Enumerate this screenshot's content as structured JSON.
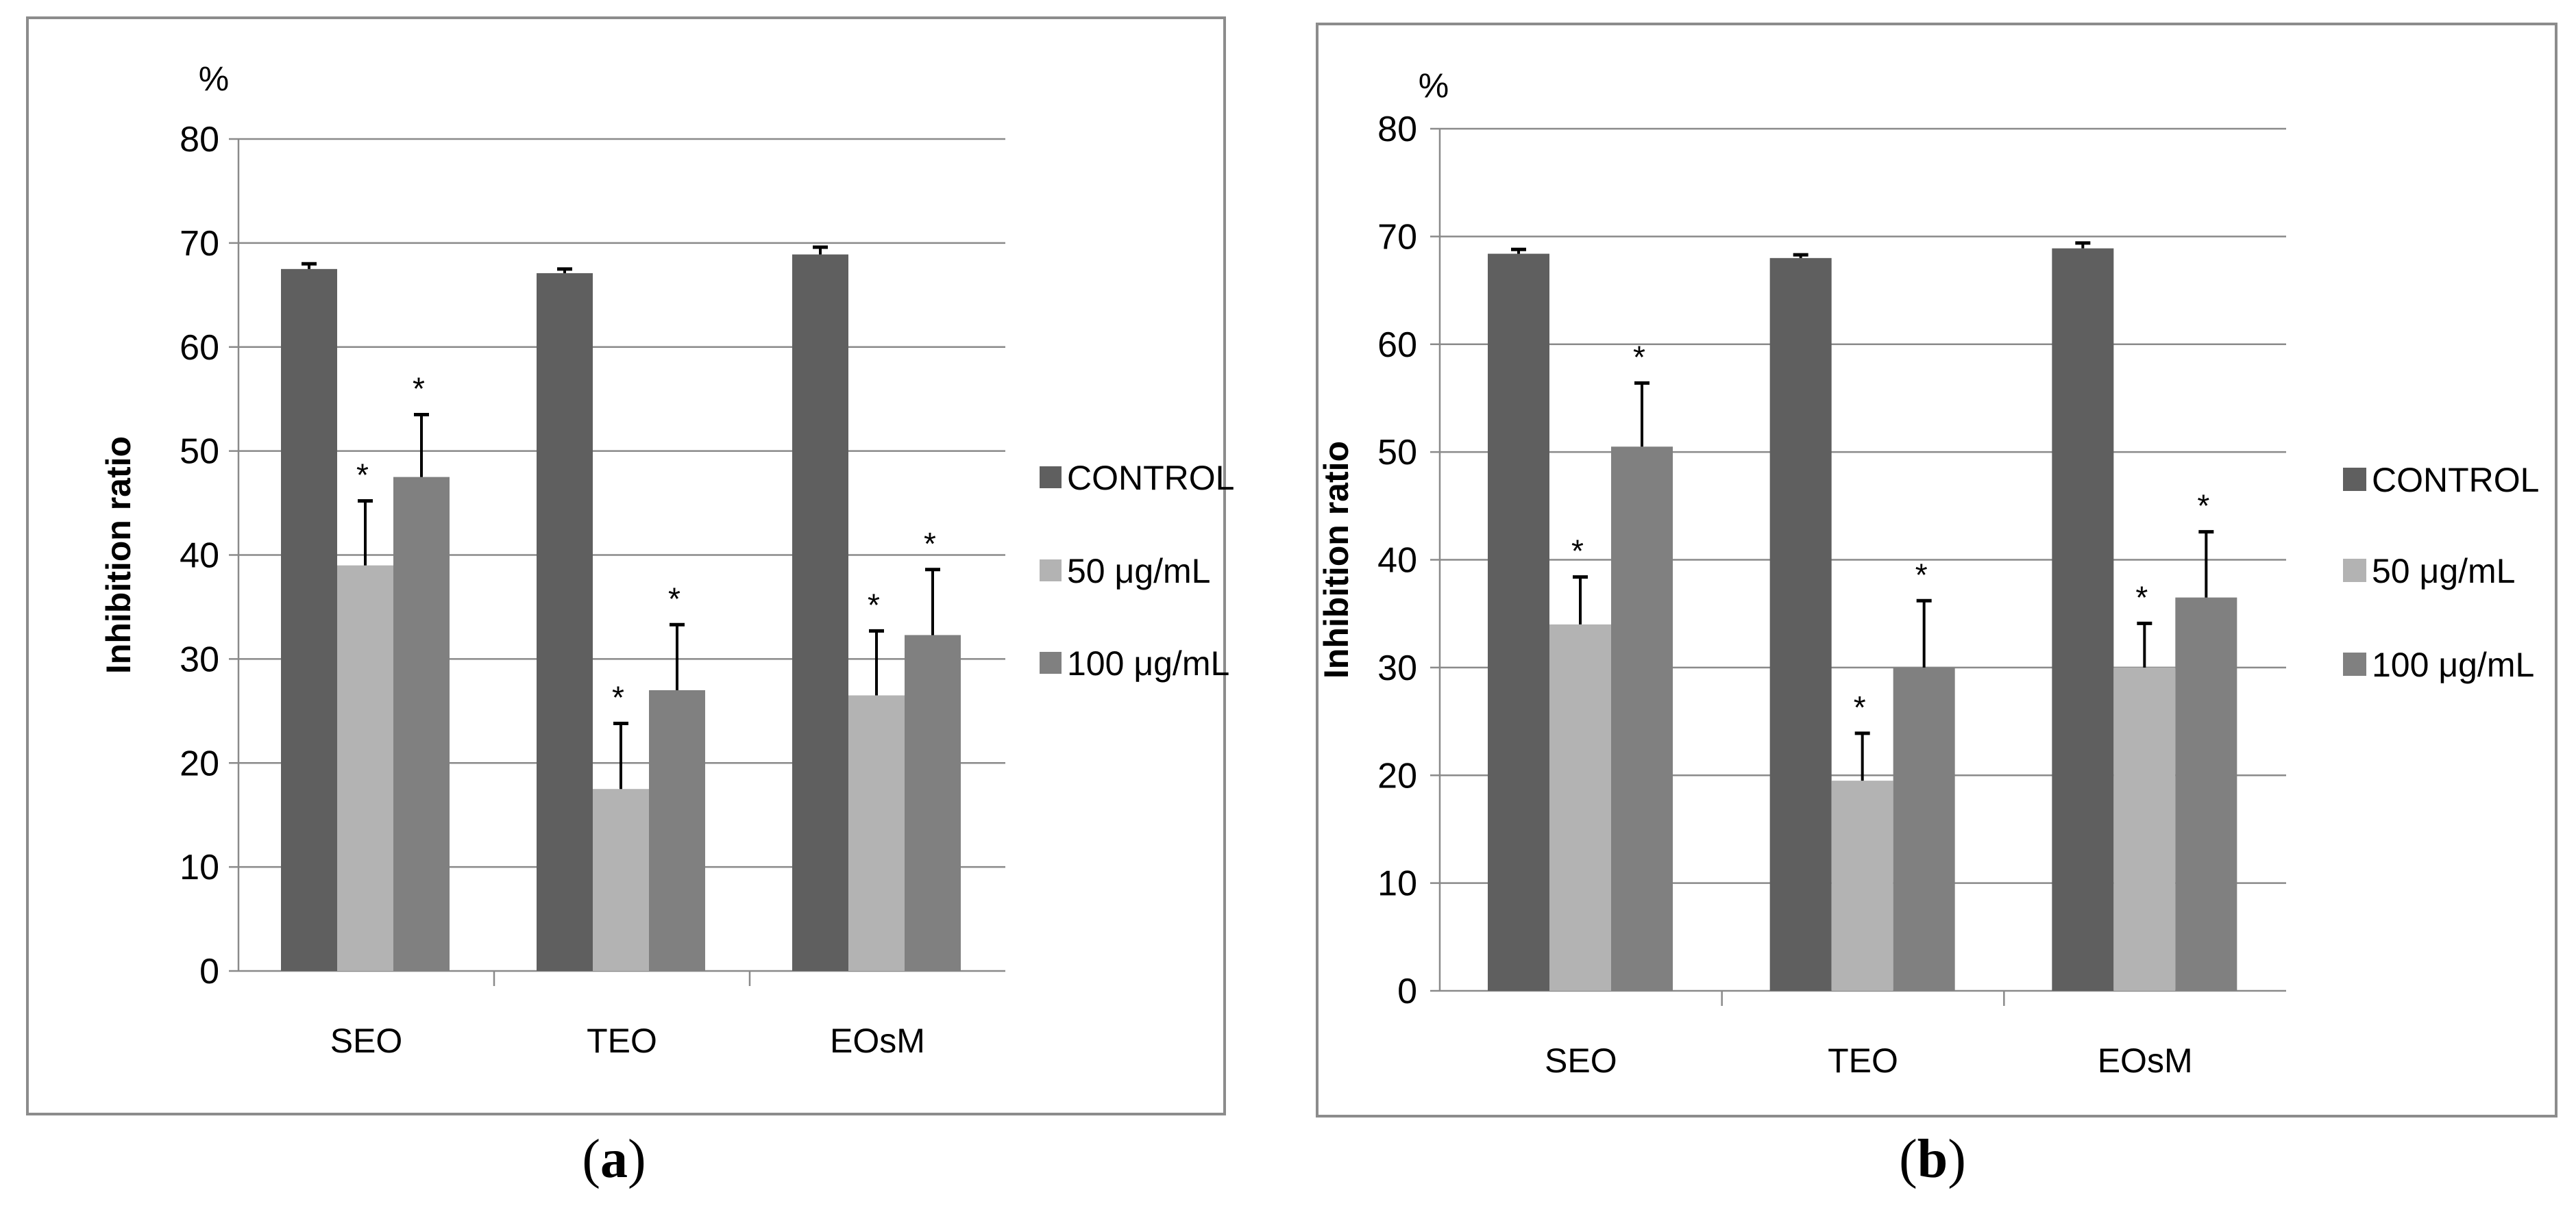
{
  "chart_data": [
    {
      "type": "bar",
      "panel": "(a)",
      "ylabel": "Inhibition ratio",
      "yunit": "%",
      "ylim": [
        0,
        80
      ],
      "yticks": [
        "0",
        "10",
        "20",
        "30",
        "40",
        "50",
        "60",
        "70",
        "80"
      ],
      "grid": true,
      "legend_position": "right",
      "categories": [
        "SEO",
        "TEO",
        "EOsM"
      ],
      "series": [
        {
          "name": "CONTROL",
          "color": "#5f5f5f",
          "values": [
            67.5,
            67.1,
            68.9
          ],
          "errors": [
            0.5,
            0.4,
            0.7
          ],
          "significant": [
            false,
            false,
            false
          ]
        },
        {
          "name": "50 μg/mL",
          "color": "#b3b3b3",
          "values": [
            39.0,
            17.5,
            26.5
          ],
          "errors": [
            6.2,
            6.3,
            6.2
          ],
          "significant": [
            true,
            true,
            true
          ]
        },
        {
          "name": "100 μg/mL",
          "color": "#808080",
          "values": [
            47.5,
            27.0,
            32.3
          ],
          "errors": [
            6.0,
            6.3,
            6.3
          ],
          "significant": [
            true,
            true,
            true
          ]
        }
      ],
      "significance_marker": "*"
    },
    {
      "type": "bar",
      "panel": "(b)",
      "ylabel": "Inhibition ratio",
      "yunit": "%",
      "ylim": [
        0,
        80
      ],
      "yticks": [
        "0",
        "10",
        "20",
        "30",
        "40",
        "50",
        "60",
        "70",
        "80"
      ],
      "grid": true,
      "legend_position": "right",
      "categories": [
        "SEO",
        "TEO",
        "EOsM"
      ],
      "series": [
        {
          "name": "CONTROL",
          "color": "#5f5f5f",
          "values": [
            68.4,
            68.0,
            68.9
          ],
          "errors": [
            0.4,
            0.3,
            0.5
          ],
          "significant": [
            false,
            false,
            false
          ]
        },
        {
          "name": "50 μg/mL",
          "color": "#b3b3b3",
          "values": [
            34.0,
            19.5,
            30.0
          ],
          "errors": [
            4.4,
            4.4,
            4.1
          ],
          "significant": [
            true,
            true,
            true
          ]
        },
        {
          "name": "100 μg/mL",
          "color": "#808080",
          "values": [
            50.5,
            30.0,
            36.5
          ],
          "errors": [
            5.9,
            6.2,
            6.1
          ],
          "significant": [
            true,
            true,
            true
          ]
        }
      ],
      "significance_marker": "*"
    }
  ],
  "panel_labels": {
    "a": "a",
    "b": "b"
  }
}
